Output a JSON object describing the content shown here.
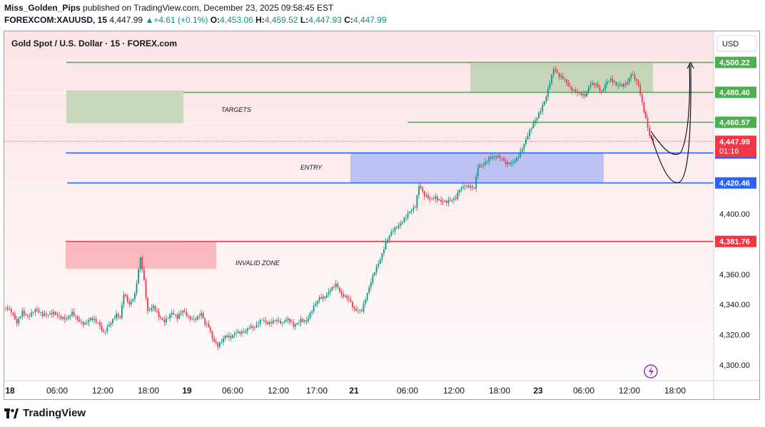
{
  "header": {
    "author": "Miss_Golden_Pips",
    "published_text": "published on TradingView.com, December 23, 2025 09:58:45 EST",
    "symbol": "FOREXCOM:XAUUSD, 15",
    "last_price": "4,447.99",
    "change": "+4.61 (+0.1%)",
    "ohlc": [
      {
        "label": "O:",
        "value": "4,453.06"
      },
      {
        "label": "H:",
        "value": "4,459.52"
      },
      {
        "label": "L:",
        "value": "4,447.93"
      },
      {
        "label": "C:",
        "value": "4,447.99"
      }
    ]
  },
  "footer": {
    "brand": "TradingView"
  },
  "chart_data": {
    "type": "candlestick",
    "title": "Gold Spot / U.S. Dollar · 15 · FOREX.com",
    "currency": "USD",
    "ylim": [
      4290,
      4510
    ],
    "y_ticks": [
      "4,300.00",
      "4,320.00",
      "4,340.00",
      "4,360.00",
      "4,400.00"
    ],
    "x_ticks": [
      "18",
      "06:00",
      "12:00",
      "18:00",
      "19",
      "06:00",
      "12:00",
      "17:00",
      "21",
      "06:00",
      "12:00",
      "18:00",
      "23",
      "06:00",
      "12:00",
      "18:00"
    ],
    "levels": [
      {
        "value": 4500.22,
        "label": "4,500.22",
        "color": "#4caf50"
      },
      {
        "value": 4480.4,
        "label": "4,480.40",
        "color": "#4caf50"
      },
      {
        "value": 4460.57,
        "label": "4,460.57",
        "color": "#4caf50"
      },
      {
        "value": 4440.28,
        "label": "4,440.28",
        "color": "#2962ff"
      },
      {
        "value": 4420.46,
        "label": "4,420.46",
        "color": "#2962ff"
      },
      {
        "value": 4381.76,
        "label": "4,381.76",
        "color": "#f23645"
      }
    ],
    "current_price": {
      "value": 4447.99,
      "label": "4,447.99",
      "countdown": "01:16"
    },
    "zones": [
      {
        "label": "TARGETS",
        "color": "#4caf50"
      },
      {
        "label": "ENTRY",
        "color": "#2962ff"
      },
      {
        "label": "INVALID ZONE",
        "color": "#f23645"
      }
    ],
    "close_path": [
      [
        0,
        4338
      ],
      [
        3,
        4334
      ],
      [
        6,
        4327
      ],
      [
        9,
        4336
      ],
      [
        12,
        4333
      ],
      [
        16,
        4336
      ],
      [
        20,
        4332
      ],
      [
        23,
        4334
      ],
      [
        26,
        4336
      ],
      [
        30,
        4331
      ],
      [
        33,
        4329
      ],
      [
        36,
        4334
      ],
      [
        40,
        4330
      ],
      [
        43,
        4328
      ],
      [
        46,
        4330
      ],
      [
        50,
        4327
      ],
      [
        53,
        4322
      ],
      [
        56,
        4328
      ],
      [
        60,
        4333
      ],
      [
        62,
        4330
      ],
      [
        64,
        4346
      ],
      [
        67,
        4340
      ],
      [
        70,
        4348
      ],
      [
        73,
        4372
      ],
      [
        75,
        4355
      ],
      [
        77,
        4334
      ],
      [
        80,
        4338
      ],
      [
        83,
        4333
      ],
      [
        86,
        4330
      ],
      [
        90,
        4334
      ],
      [
        93,
        4330
      ],
      [
        96,
        4336
      ],
      [
        100,
        4332
      ],
      [
        103,
        4331
      ],
      [
        106,
        4333
      ],
      [
        108,
        4326
      ],
      [
        110,
        4325
      ],
      [
        112,
        4318
      ],
      [
        115,
        4314
      ],
      [
        119,
        4319
      ],
      [
        122,
        4317
      ],
      [
        125,
        4321
      ],
      [
        129,
        4323
      ],
      [
        132,
        4326
      ],
      [
        135,
        4324
      ],
      [
        139,
        4329
      ],
      [
        142,
        4328
      ],
      [
        146,
        4331
      ],
      [
        150,
        4327
      ],
      [
        153,
        4329
      ],
      [
        156,
        4326
      ],
      [
        160,
        4331
      ],
      [
        163,
        4329
      ],
      [
        166,
        4335
      ],
      [
        170,
        4344
      ],
      [
        173,
        4346
      ],
      [
        176,
        4351
      ],
      [
        179,
        4353
      ],
      [
        182,
        4345
      ],
      [
        186,
        4344
      ],
      [
        189,
        4338
      ],
      [
        193,
        4336
      ],
      [
        196,
        4346
      ],
      [
        200,
        4362
      ],
      [
        203,
        4371
      ],
      [
        206,
        4382
      ],
      [
        209,
        4387
      ],
      [
        213,
        4391
      ],
      [
        216,
        4397
      ],
      [
        219,
        4403
      ],
      [
        222,
        4405
      ],
      [
        224,
        4418
      ],
      [
        227,
        4411
      ],
      [
        230,
        4410
      ],
      [
        233,
        4412
      ],
      [
        236,
        4409
      ],
      [
        239,
        4407
      ],
      [
        242,
        4408
      ],
      [
        244,
        4410
      ],
      [
        246,
        4417
      ],
      [
        249,
        4420
      ],
      [
        252,
        4418
      ],
      [
        254,
        4416
      ],
      [
        256,
        4430
      ],
      [
        259,
        4432
      ],
      [
        262,
        4438
      ],
      [
        265,
        4439
      ],
      [
        268,
        4437
      ],
      [
        271,
        4432
      ],
      [
        274,
        4433
      ],
      [
        276,
        4436
      ],
      [
        279,
        4442
      ],
      [
        282,
        4449
      ],
      [
        285,
        4456
      ],
      [
        288,
        4463
      ],
      [
        290,
        4469
      ],
      [
        293,
        4479
      ],
      [
        295,
        4488
      ],
      [
        297,
        4496
      ],
      [
        300,
        4490
      ],
      [
        303,
        4488
      ],
      [
        306,
        4484
      ],
      [
        309,
        4482
      ],
      [
        312,
        4479
      ],
      [
        314,
        4477
      ],
      [
        317,
        4485
      ],
      [
        320,
        4486
      ],
      [
        323,
        4482
      ],
      [
        326,
        4488
      ],
      [
        328,
        4488
      ],
      [
        331,
        4484
      ],
      [
        334,
        4485
      ],
      [
        337,
        4488
      ],
      [
        339,
        4494
      ],
      [
        341,
        4490
      ],
      [
        343,
        4484
      ],
      [
        345,
        4472
      ],
      [
        347,
        4462
      ],
      [
        349,
        4452
      ],
      [
        351,
        4447.99
      ]
    ]
  }
}
